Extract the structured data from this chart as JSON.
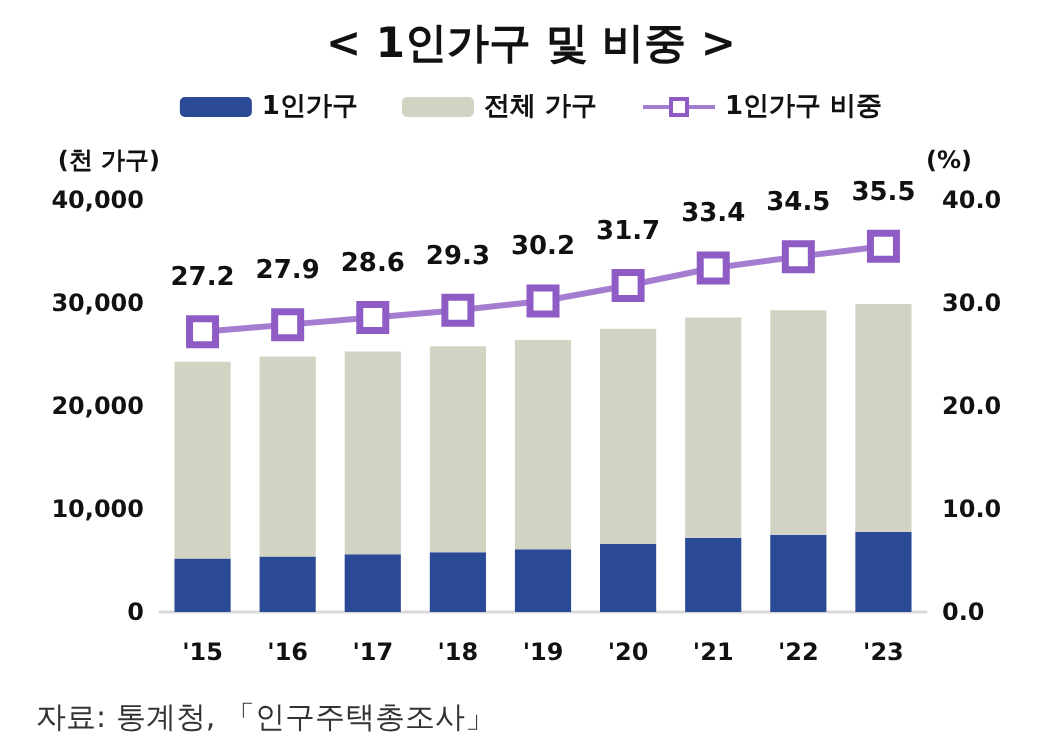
{
  "chart_data": {
    "type": "bar",
    "title": "< 1인가구 및 비중 >",
    "ylabel": "(천 가구)",
    "y2label": "(%)",
    "categories": [
      "'15",
      "'16",
      "'17",
      "'18",
      "'19",
      "'20",
      "'21",
      "'22",
      "'23"
    ],
    "stacked": true,
    "series": [
      {
        "name": "1인가구",
        "color": "#2b4a96",
        "values": [
          5200,
          5400,
          5600,
          5800,
          6100,
          6600,
          7200,
          7500,
          7800
        ]
      },
      {
        "name": "전체 가구",
        "color": "#d3d3c3",
        "values": [
          19100,
          19400,
          19700,
          20000,
          20300,
          20900,
          21400,
          21800,
          22100
        ]
      },
      {
        "name": "1인가구 비중",
        "type": "line",
        "axis": "y2",
        "color": "#8e5cc4",
        "marker": "square",
        "data_labels": true,
        "values": [
          27.2,
          27.9,
          28.6,
          29.3,
          30.2,
          31.7,
          33.4,
          34.5,
          35.5
        ]
      }
    ],
    "ylim": [
      0,
      40000
    ],
    "yticks": [
      0,
      {
        "value": 10000,
        "label": "10,000"
      },
      {
        "value": 20000,
        "label": "20,000"
      },
      {
        "value": 30000,
        "label": "30,000"
      },
      {
        "value": 40000,
        "label": "40,000"
      }
    ],
    "y2lim": [
      0,
      40
    ],
    "y2ticks": [
      {
        "value": 0,
        "label": "0.0"
      },
      {
        "value": 10,
        "label": "10.0"
      },
      {
        "value": 20,
        "label": "20.0"
      },
      {
        "value": 30,
        "label": "30.0"
      },
      {
        "value": 40,
        "label": "40.0"
      }
    ],
    "grid": false,
    "legend": "top",
    "annotations": [
      "자료: 통계청, 「인구주택총조사」"
    ]
  }
}
